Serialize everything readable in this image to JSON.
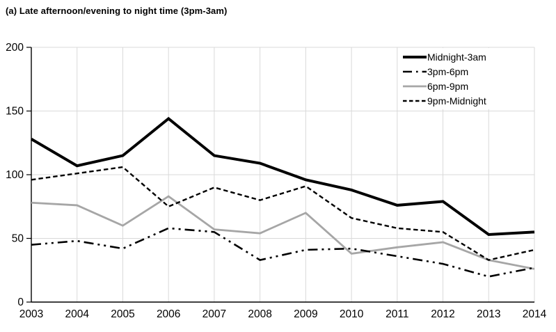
{
  "page": {
    "title": "(a) Late afternoon/evening to night time (3pm-3am)"
  },
  "chart_data": {
    "type": "line",
    "title": "(a) Late afternoon/evening to night time (3pm-3am)",
    "categories": [
      "2003",
      "2004",
      "2005",
      "2006",
      "2007",
      "2008",
      "2009",
      "2010",
      "2011",
      "2012",
      "2013",
      "2014"
    ],
    "series": [
      {
        "name": "Midnight-3am",
        "style": "solid-thick",
        "color": "#000000",
        "values": [
          128,
          107,
          115,
          144,
          115,
          109,
          96,
          88,
          76,
          79,
          53,
          55
        ]
      },
      {
        "name": "3pm-6pm",
        "style": "dash-dot-dot",
        "color": "#000000",
        "values": [
          45,
          48,
          42,
          58,
          55,
          33,
          41,
          42,
          36,
          30,
          20,
          27
        ]
      },
      {
        "name": "6pm-9pm",
        "style": "solid",
        "color": "#a6a6a6",
        "values": [
          78,
          76,
          60,
          83,
          57,
          54,
          70,
          38,
          43,
          47,
          33,
          26
        ]
      },
      {
        "name": "9pm-Midnight",
        "style": "dashed",
        "color": "#000000",
        "values": [
          96,
          101,
          106,
          75,
          90,
          80,
          91,
          66,
          58,
          55,
          33,
          41
        ]
      }
    ],
    "xlabel": "",
    "ylabel": "",
    "ylim": [
      0,
      200
    ],
    "yticks": [
      "0",
      "50",
      "100",
      "150",
      "200"
    ],
    "grid": true,
    "legend_position": "top-right"
  },
  "colors": {
    "background": "#ffffff",
    "axis": "#000000",
    "gridline": "#d9d9d9",
    "text": "#000000",
    "gray_series": "#a6a6a6"
  }
}
